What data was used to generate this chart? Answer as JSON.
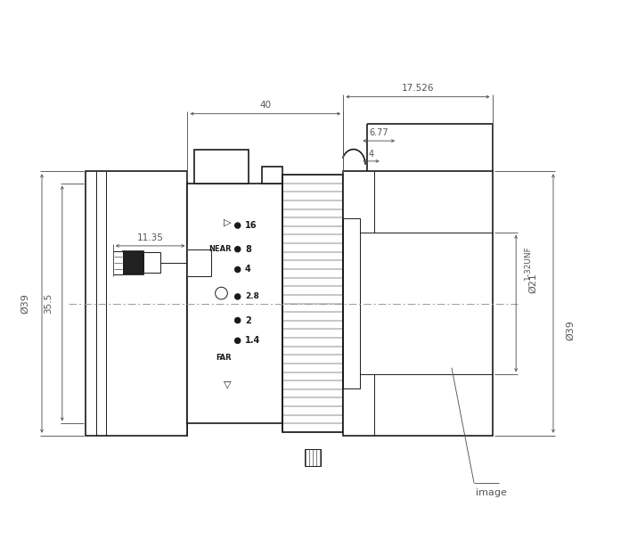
{
  "bg_color": "#ffffff",
  "line_color": "#1a1a1a",
  "dim_color": "#555555",
  "center_color": "#999999",
  "fig_width": 7.06,
  "fig_height": 6.24,
  "dim_40": "40",
  "dim_17526": "17.526",
  "dim_1135": "11.35",
  "dim_677": "6.77",
  "dim_4": "4",
  "dim_355": "35.5",
  "dim_dia39L": "Ø39",
  "dim_dia21": "Ø21",
  "dim_thread": "1-32UNF",
  "dim_dia39R": "Ø39",
  "label_image": "image",
  "apertures": [
    "16",
    "8",
    "4",
    "2.8",
    "2",
    "1.4"
  ],
  "scale_labels": [
    "△",
    "NEAR",
    "FAR",
    "▽"
  ]
}
